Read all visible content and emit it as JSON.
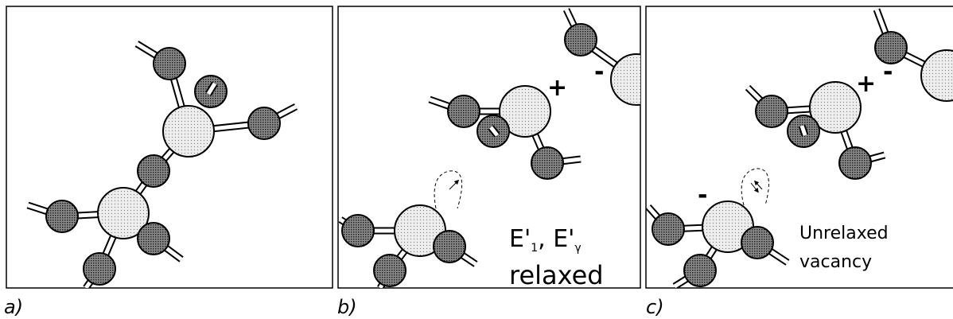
{
  "panels": [
    {
      "label": "a)"
    },
    {
      "label": "b)",
      "plus": "+",
      "minus": "-",
      "formula": {
        "main1": "E'",
        "sub1": "1",
        "sep": ", ",
        "main2": "E'",
        "sub2": "γ"
      },
      "caption": "relaxed"
    },
    {
      "label": "c)",
      "plus": "+",
      "minus": "-",
      "minus2": "-",
      "caption1": "Unrelaxed",
      "caption2": "vacancy"
    }
  ]
}
